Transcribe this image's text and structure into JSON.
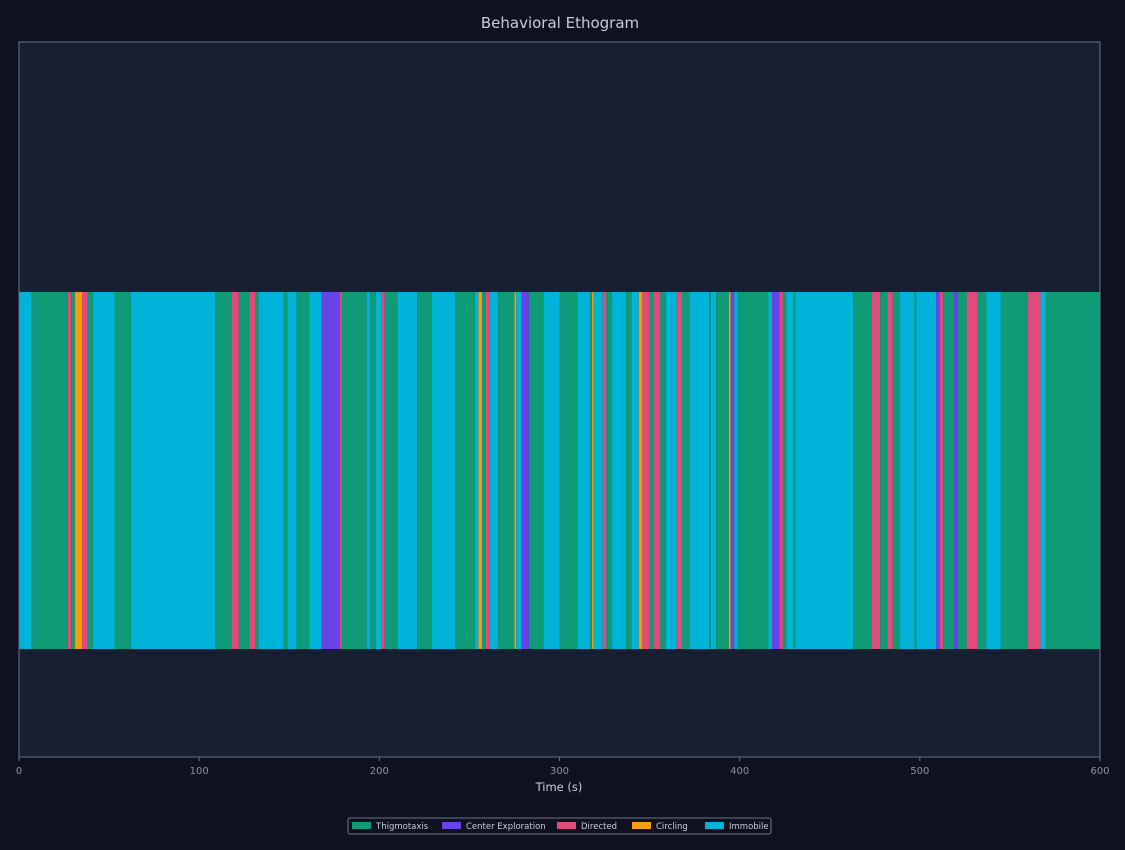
{
  "chart_data": {
    "type": "bar",
    "title": "Behavioral Ethogram",
    "xlabel": "Time (s)",
    "ylabel": "",
    "xlim": [
      0,
      600
    ],
    "xticks": [
      0,
      100,
      200,
      300,
      400,
      500,
      600
    ],
    "grid": false,
    "legend_placement": "bottom-center",
    "colors": {
      "background": "#0e1220",
      "plot_background": "#172033",
      "axis": "#6b7487"
    },
    "categories": [
      {
        "name": "Thigmotaxis",
        "color": "#109b77"
      },
      {
        "name": "Center Exploration",
        "color": "#6844e6"
      },
      {
        "name": "Directed",
        "color": "#df4c7c"
      },
      {
        "name": "Circling",
        "color": "#f59e0b"
      },
      {
        "name": "Immobile",
        "color": "#00b3d8"
      }
    ],
    "segments": [
      {
        "start": 0,
        "end": 7,
        "behavior": "Immobile"
      },
      {
        "start": 7,
        "end": 27,
        "behavior": "Thigmotaxis"
      },
      {
        "start": 27,
        "end": 29,
        "behavior": "Directed"
      },
      {
        "start": 29,
        "end": 31,
        "behavior": "Thigmotaxis"
      },
      {
        "start": 31,
        "end": 35,
        "behavior": "Circling"
      },
      {
        "start": 35,
        "end": 38,
        "behavior": "Directed"
      },
      {
        "start": 38,
        "end": 41,
        "behavior": "Thigmotaxis"
      },
      {
        "start": 41,
        "end": 53,
        "behavior": "Immobile"
      },
      {
        "start": 53,
        "end": 62,
        "behavior": "Thigmotaxis"
      },
      {
        "start": 62,
        "end": 109,
        "behavior": "Immobile"
      },
      {
        "start": 109,
        "end": 118,
        "behavior": "Thigmotaxis"
      },
      {
        "start": 118,
        "end": 122,
        "behavior": "Directed"
      },
      {
        "start": 122,
        "end": 128,
        "behavior": "Thigmotaxis"
      },
      {
        "start": 128,
        "end": 131,
        "behavior": "Directed"
      },
      {
        "start": 131,
        "end": 133,
        "behavior": "Thigmotaxis"
      },
      {
        "start": 133,
        "end": 147,
        "behavior": "Immobile"
      },
      {
        "start": 147,
        "end": 149,
        "behavior": "Thigmotaxis"
      },
      {
        "start": 149,
        "end": 154,
        "behavior": "Immobile"
      },
      {
        "start": 154,
        "end": 161,
        "behavior": "Thigmotaxis"
      },
      {
        "start": 161,
        "end": 168,
        "behavior": "Immobile"
      },
      {
        "start": 168,
        "end": 178,
        "behavior": "Center Exploration"
      },
      {
        "start": 178,
        "end": 179,
        "behavior": "Directed"
      },
      {
        "start": 179,
        "end": 193,
        "behavior": "Thigmotaxis"
      },
      {
        "start": 193,
        "end": 195,
        "behavior": "Immobile"
      },
      {
        "start": 195,
        "end": 198,
        "behavior": "Thigmotaxis"
      },
      {
        "start": 198,
        "end": 201,
        "behavior": "Immobile"
      },
      {
        "start": 201,
        "end": 203,
        "behavior": "Directed"
      },
      {
        "start": 203,
        "end": 210,
        "behavior": "Thigmotaxis"
      },
      {
        "start": 210,
        "end": 221,
        "behavior": "Immobile"
      },
      {
        "start": 221,
        "end": 229,
        "behavior": "Thigmotaxis"
      },
      {
        "start": 229,
        "end": 242,
        "behavior": "Immobile"
      },
      {
        "start": 242,
        "end": 253,
        "behavior": "Thigmotaxis"
      },
      {
        "start": 253,
        "end": 255,
        "behavior": "Immobile"
      },
      {
        "start": 255,
        "end": 257,
        "behavior": "Circling"
      },
      {
        "start": 257,
        "end": 259,
        "behavior": "Thigmotaxis"
      },
      {
        "start": 259,
        "end": 261,
        "behavior": "Directed"
      },
      {
        "start": 261,
        "end": 266,
        "behavior": "Immobile"
      },
      {
        "start": 266,
        "end": 275,
        "behavior": "Thigmotaxis"
      },
      {
        "start": 275,
        "end": 276,
        "behavior": "Circling"
      },
      {
        "start": 276,
        "end": 279,
        "behavior": "Immobile"
      },
      {
        "start": 279,
        "end": 283,
        "behavior": "Center Exploration"
      },
      {
        "start": 283,
        "end": 291,
        "behavior": "Thigmotaxis"
      },
      {
        "start": 291,
        "end": 300,
        "behavior": "Immobile"
      },
      {
        "start": 300,
        "end": 310,
        "behavior": "Thigmotaxis"
      },
      {
        "start": 310,
        "end": 317,
        "behavior": "Immobile"
      },
      {
        "start": 317,
        "end": 318,
        "behavior": "Thigmotaxis"
      },
      {
        "start": 318,
        "end": 319,
        "behavior": "Circling"
      },
      {
        "start": 319,
        "end": 324,
        "behavior": "Immobile"
      },
      {
        "start": 324,
        "end": 326,
        "behavior": "Directed"
      },
      {
        "start": 326,
        "end": 329,
        "behavior": "Thigmotaxis"
      },
      {
        "start": 329,
        "end": 337,
        "behavior": "Immobile"
      },
      {
        "start": 337,
        "end": 340,
        "behavior": "Thigmotaxis"
      },
      {
        "start": 340,
        "end": 344,
        "behavior": "Immobile"
      },
      {
        "start": 344,
        "end": 346,
        "behavior": "Circling"
      },
      {
        "start": 346,
        "end": 350,
        "behavior": "Directed"
      },
      {
        "start": 350,
        "end": 352,
        "behavior": "Thigmotaxis"
      },
      {
        "start": 352,
        "end": 356,
        "behavior": "Directed"
      },
      {
        "start": 356,
        "end": 359,
        "behavior": "Thigmotaxis"
      },
      {
        "start": 359,
        "end": 365,
        "behavior": "Immobile"
      },
      {
        "start": 365,
        "end": 368,
        "behavior": "Directed"
      },
      {
        "start": 368,
        "end": 372,
        "behavior": "Thigmotaxis"
      },
      {
        "start": 372,
        "end": 383,
        "behavior": "Immobile"
      },
      {
        "start": 383,
        "end": 384,
        "behavior": "Thigmotaxis"
      },
      {
        "start": 384,
        "end": 387,
        "behavior": "Immobile"
      },
      {
        "start": 387,
        "end": 394,
        "behavior": "Thigmotaxis"
      },
      {
        "start": 394,
        "end": 395,
        "behavior": "Circling"
      },
      {
        "start": 395,
        "end": 397,
        "behavior": "Center Exploration"
      },
      {
        "start": 397,
        "end": 399,
        "behavior": "Immobile"
      },
      {
        "start": 399,
        "end": 416,
        "behavior": "Thigmotaxis"
      },
      {
        "start": 416,
        "end": 418,
        "behavior": "Immobile"
      },
      {
        "start": 418,
        "end": 422,
        "behavior": "Center Exploration"
      },
      {
        "start": 422,
        "end": 424,
        "behavior": "Directed"
      },
      {
        "start": 424,
        "end": 426,
        "behavior": "Thigmotaxis"
      },
      {
        "start": 426,
        "end": 430,
        "behavior": "Immobile"
      },
      {
        "start": 430,
        "end": 431,
        "behavior": "Thigmotaxis"
      },
      {
        "start": 431,
        "end": 463,
        "behavior": "Immobile"
      },
      {
        "start": 463,
        "end": 473,
        "behavior": "Thigmotaxis"
      },
      {
        "start": 473,
        "end": 478,
        "behavior": "Directed"
      },
      {
        "start": 478,
        "end": 482,
        "behavior": "Thigmotaxis"
      },
      {
        "start": 482,
        "end": 485,
        "behavior": "Directed"
      },
      {
        "start": 485,
        "end": 489,
        "behavior": "Thigmotaxis"
      },
      {
        "start": 489,
        "end": 497,
        "behavior": "Immobile"
      },
      {
        "start": 497,
        "end": 498,
        "behavior": "Thigmotaxis"
      },
      {
        "start": 498,
        "end": 509,
        "behavior": "Immobile"
      },
      {
        "start": 509,
        "end": 511,
        "behavior": "Center Exploration"
      },
      {
        "start": 511,
        "end": 513,
        "behavior": "Directed"
      },
      {
        "start": 513,
        "end": 519,
        "behavior": "Thigmotaxis"
      },
      {
        "start": 519,
        "end": 521,
        "behavior": "Center Exploration"
      },
      {
        "start": 521,
        "end": 526,
        "behavior": "Thigmotaxis"
      },
      {
        "start": 526,
        "end": 532,
        "behavior": "Directed"
      },
      {
        "start": 532,
        "end": 537,
        "behavior": "Thigmotaxis"
      },
      {
        "start": 537,
        "end": 545,
        "behavior": "Immobile"
      },
      {
        "start": 545,
        "end": 560,
        "behavior": "Thigmotaxis"
      },
      {
        "start": 560,
        "end": 567,
        "behavior": "Directed"
      },
      {
        "start": 567,
        "end": 570,
        "behavior": "Immobile"
      },
      {
        "start": 570,
        "end": 600,
        "behavior": "Thigmotaxis"
      }
    ]
  }
}
